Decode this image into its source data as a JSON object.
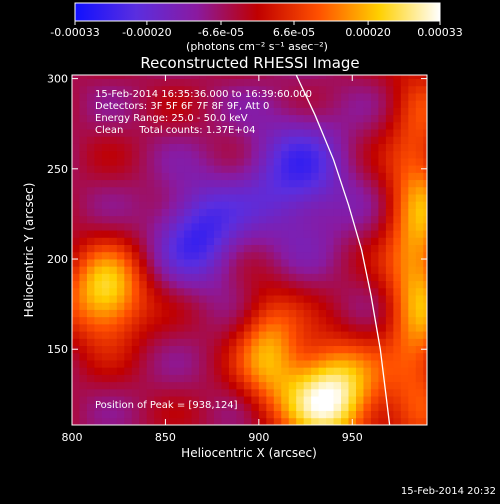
{
  "colorbar": {
    "tick_labels": [
      "-0.00033",
      "-0.00020",
      "-6.6e-05",
      "6.6e-05",
      "0.00020",
      "0.00033"
    ],
    "tick_values": [
      -0.00033,
      -0.0002,
      -6.6e-05,
      6.6e-05,
      0.0002,
      0.00033
    ],
    "range": [
      -0.00033,
      0.00033
    ],
    "unit_label": "(photons cm⁻² s⁻¹ asec⁻²)",
    "colors": [
      "#1010ff",
      "#5a2ee0",
      "#8a1aa0",
      "#c00000",
      "#ff5000",
      "#ffd000",
      "#ffffff"
    ]
  },
  "chart_data": {
    "type": "heatmap",
    "title": "Reconstructed RHESSI Image",
    "xlabel": "Heliocentric X (arcsec)",
    "ylabel": "Heliocentric Y (arcsec)",
    "xlim": [
      800,
      990
    ],
    "ylim": [
      108,
      302
    ],
    "x_ticks": [
      800,
      850,
      900,
      950
    ],
    "y_ticks": [
      150,
      200,
      250,
      300
    ],
    "info_lines": [
      "15-Feb-2014 16:35:36.000 to 16:39:60.000",
      "Detectors: 3F 5F 6F 7F 8F 9F, Att 0",
      "Energy Range: 25.0 - 50.0 keV",
      "Clean     Total counts: 1.37E+04"
    ],
    "peak_label": "Position of Peak = [938,124]",
    "peak_position": [
      938,
      124
    ],
    "limb_points": [
      [
        920,
        302
      ],
      [
        930,
        280
      ],
      [
        940,
        255
      ],
      [
        948,
        230
      ],
      [
        955,
        205
      ],
      [
        960,
        180
      ],
      [
        965,
        150
      ],
      [
        968,
        125
      ],
      [
        970,
        108
      ]
    ],
    "sources": [
      {
        "x": 938,
        "y": 124,
        "sx": 18,
        "sy": 20,
        "amp": 1.0
      },
      {
        "x": 818,
        "y": 180,
        "sx": 15,
        "sy": 18,
        "amp": 0.8
      },
      {
        "x": 905,
        "y": 150,
        "sx": 12,
        "sy": 22,
        "amp": 0.55
      },
      {
        "x": 985,
        "y": 200,
        "sx": 12,
        "sy": 70,
        "amp": 0.65
      },
      {
        "x": 868,
        "y": 215,
        "sx": 16,
        "sy": 20,
        "amp": -0.55
      },
      {
        "x": 920,
        "y": 245,
        "sx": 20,
        "sy": 25,
        "amp": -0.5
      }
    ]
  },
  "timestamp": "15-Feb-2014 20:32"
}
